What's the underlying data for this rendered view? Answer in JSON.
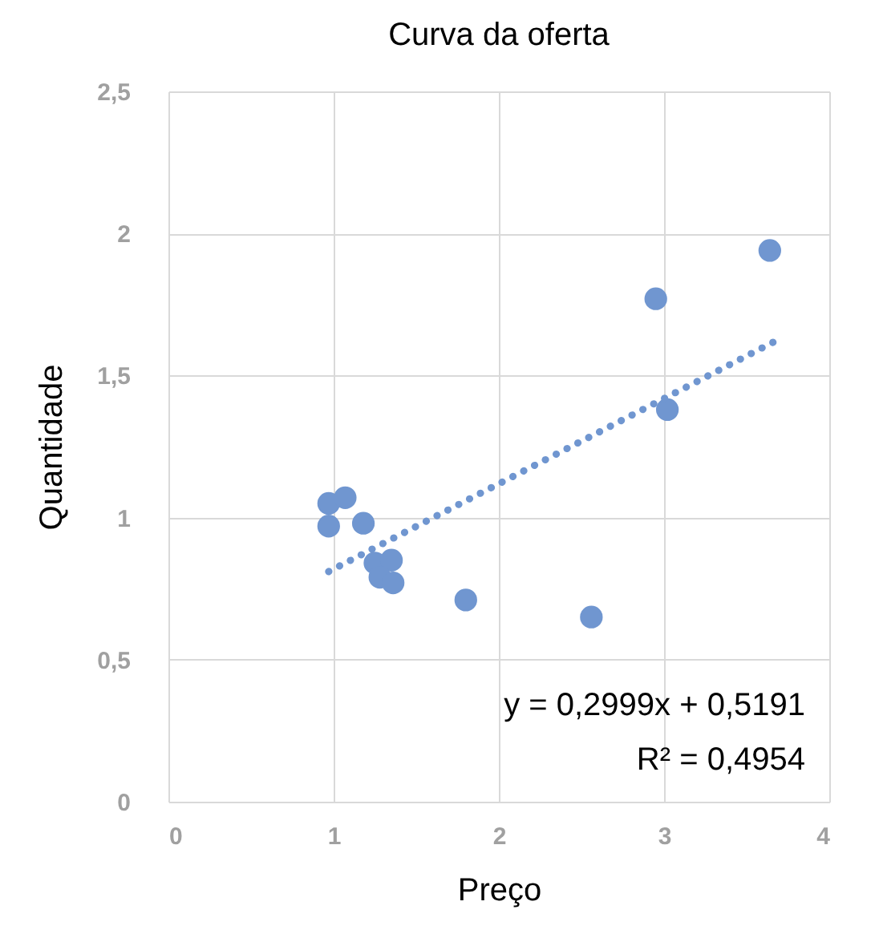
{
  "chart_data": {
    "type": "scatter",
    "title": "Curva da oferta",
    "xlabel": "Preço",
    "ylabel": "Quantidade",
    "annotations": [
      "y = 0,2999x + 0,5191",
      "R² = 0,4954"
    ],
    "series": [
      {
        "color": "#7096d0",
        "marker": "circle",
        "x": [
          0.97,
          1.07,
          0.97,
          1.18,
          1.25,
          1.35,
          1.28,
          1.36,
          1.8,
          2.56,
          2.95,
          3.02,
          3.64
        ],
        "values": [
          1.05,
          1.07,
          0.97,
          0.98,
          0.84,
          0.85,
          0.79,
          0.77,
          0.71,
          0.65,
          1.77,
          1.38,
          1.94
        ]
      },
      {
        "type": "line",
        "color": "#7096d0",
        "line_style": "dotted",
        "x": [
          0.97,
          3.66
        ],
        "values": [
          0.81,
          1.617
        ]
      }
    ],
    "xlim": [
      0,
      4
    ],
    "xticks": [
      0,
      1,
      2,
      3,
      4
    ],
    "ylim": [
      0,
      2.5
    ],
    "yticks": [
      0,
      {
        "value": 0.5,
        "label": "0,5"
      },
      1,
      {
        "value": 1.5,
        "label": "1,5"
      },
      2,
      {
        "value": 2.5,
        "label": "2,5"
      }
    ],
    "grid": true
  }
}
